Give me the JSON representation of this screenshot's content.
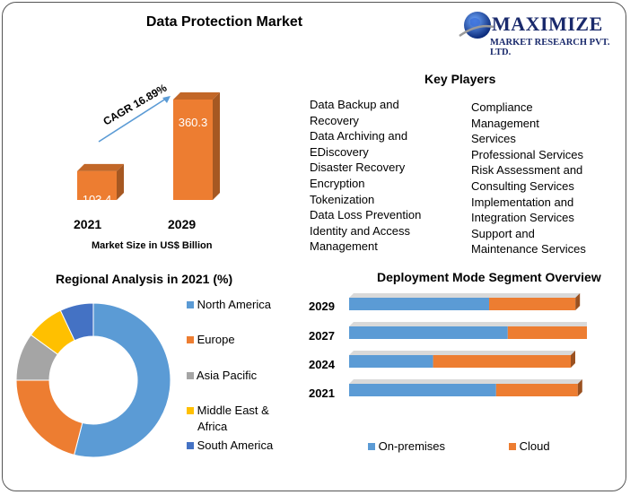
{
  "title": "Data Protection Market",
  "logo": {
    "name": "MAXIMIZE",
    "tagline": "MARKET RESEARCH PVT. LTD."
  },
  "colors": {
    "orange": "#ed7d31",
    "blue": "#5b9bd5",
    "gray": "#a5a5a5",
    "yellow": "#ffc000",
    "darkblue": "#4472c4"
  },
  "key_players": {
    "title": "Key Players",
    "left": [
      "Data Backup and",
      "Recovery",
      "Data Archiving and",
      "EDiscovery",
      "Disaster Recovery",
      "Encryption",
      "Tokenization",
      "Data Loss Prevention",
      "Identity and Access",
      "Management"
    ],
    "right": [
      "Compliance",
      "Management",
      "Services",
      "Professional Services",
      "Risk Assessment and",
      "Consulting Services",
      "Implementation and",
      "Integration Services",
      "Support and",
      "Maintenance Services"
    ]
  },
  "chart_data": [
    {
      "type": "bar",
      "title": "Market Size in US$ Billion",
      "categories": [
        "2021",
        "2029"
      ],
      "values": [
        103.4,
        360.3
      ],
      "annotation": "CAGR 16.89%"
    },
    {
      "type": "pie",
      "title": "Regional Analysis in 2021 (%)",
      "categories": [
        "North America",
        "Europe",
        "Asia Pacific",
        "Middle East & Africa",
        "South America"
      ],
      "values": [
        54,
        21,
        10,
        8,
        7
      ]
    },
    {
      "type": "bar",
      "orientation": "horizontal",
      "stacked": true,
      "title": "Deployment Mode Segment Overview",
      "categories": [
        "2029",
        "2027",
        "2024",
        "2021"
      ],
      "series": [
        {
          "name": "On-premises",
          "values": [
            60,
            68,
            36,
            63
          ]
        },
        {
          "name": "Cloud",
          "values": [
            37,
            36,
            59,
            35
          ]
        }
      ]
    }
  ]
}
